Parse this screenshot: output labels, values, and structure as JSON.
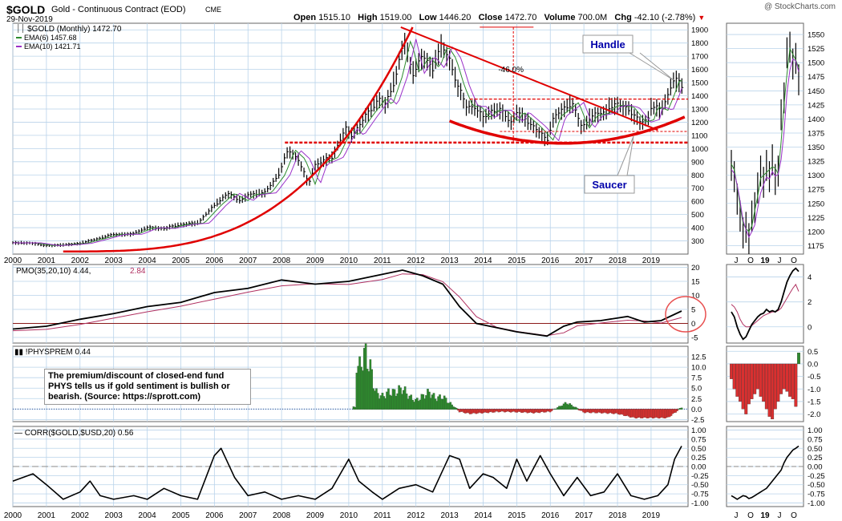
{
  "header": {
    "symbol": "$GOLD",
    "name": "Gold - Continuous Contract (EOD)",
    "exchange": "CME",
    "date": "29-Nov-2019",
    "open_label": "Open",
    "open": "1515.10",
    "high_label": "High",
    "high": "1519.00",
    "low_label": "Low",
    "low": "1446.20",
    "close_label": "Close",
    "close": "1472.70",
    "volume_label": "Volume",
    "volume": "700.0M",
    "chg_label": "Chg",
    "chg": "-42.10 (-2.78%)",
    "watermark": "@ StockCharts.com"
  },
  "colors": {
    "price": "#000000",
    "ema6": "#2e8b2e",
    "ema10": "#9b30c8",
    "annotation": "#e00000",
    "histo_pos": "#2e8b2e",
    "histo_neg": "#d83030",
    "grid": "#b9d3ea",
    "callout": "#0000aa"
  },
  "chart_data": [
    {
      "panel": "price-main",
      "type": "line",
      "legend": [
        {
          "name": "$GOLD (Monthly)",
          "value": "1472.70"
        },
        {
          "name": "EMA(6)",
          "value": "1457.68"
        },
        {
          "name": "EMA(10)",
          "value": "1421.71"
        }
      ],
      "x_ticks": [
        "2000",
        "2001",
        "2002",
        "2003",
        "2004",
        "2005",
        "2006",
        "2007",
        "2008",
        "2009",
        "2010",
        "2011",
        "2012",
        "2013",
        "2014",
        "2015",
        "2016",
        "2017",
        "2018",
        "2019"
      ],
      "y_ticks": [
        300,
        400,
        500,
        600,
        700,
        800,
        900,
        1000,
        1100,
        1200,
        1300,
        1400,
        1500,
        1600,
        1700,
        1800,
        1900
      ],
      "ylim": [
        200,
        1950
      ],
      "xlim": [
        2000.0,
        2020.1
      ],
      "close_points": [
        [
          2000.0,
          285
        ],
        [
          2000.5,
          285
        ],
        [
          2001.0,
          265
        ],
        [
          2001.5,
          270
        ],
        [
          2002.0,
          282
        ],
        [
          2002.5,
          315
        ],
        [
          2003.0,
          350
        ],
        [
          2003.5,
          350
        ],
        [
          2004.0,
          400
        ],
        [
          2004.5,
          395
        ],
        [
          2005.0,
          425
        ],
        [
          2005.5,
          435
        ],
        [
          2006.0,
          570
        ],
        [
          2006.4,
          660
        ],
        [
          2006.8,
          605
        ],
        [
          2007.0,
          650
        ],
        [
          2007.5,
          665
        ],
        [
          2007.9,
          800
        ],
        [
          2008.2,
          990
        ],
        [
          2008.5,
          920
        ],
        [
          2008.8,
          730
        ],
        [
          2009.0,
          880
        ],
        [
          2009.5,
          935
        ],
        [
          2009.9,
          1150
        ],
        [
          2010.1,
          1100
        ],
        [
          2010.5,
          1245
        ],
        [
          2010.9,
          1380
        ],
        [
          2011.1,
          1330
        ],
        [
          2011.4,
          1550
        ],
        [
          2011.65,
          1830
        ],
        [
          2011.9,
          1570
        ],
        [
          2012.2,
          1700
        ],
        [
          2012.5,
          1610
        ],
        [
          2012.75,
          1780
        ],
        [
          2013.0,
          1680
        ],
        [
          2013.25,
          1470
        ],
        [
          2013.5,
          1320
        ],
        [
          2013.75,
          1320
        ],
        [
          2014.0,
          1230
        ],
        [
          2014.25,
          1290
        ],
        [
          2014.5,
          1290
        ],
        [
          2014.85,
          1200
        ],
        [
          2015.0,
          1280
        ],
        [
          2015.5,
          1170
        ],
        [
          2015.9,
          1060
        ],
        [
          2016.1,
          1240
        ],
        [
          2016.5,
          1320
        ],
        [
          2016.65,
          1350
        ],
        [
          2016.95,
          1150
        ],
        [
          2017.2,
          1250
        ],
        [
          2017.6,
          1270
        ],
        [
          2017.75,
          1320
        ],
        [
          2018.0,
          1330
        ],
        [
          2018.3,
          1310
        ],
        [
          2018.65,
          1200
        ],
        [
          2018.9,
          1220
        ],
        [
          2019.0,
          1320
        ],
        [
          2019.3,
          1290
        ],
        [
          2019.5,
          1410
        ],
        [
          2019.65,
          1520
        ],
        [
          2019.8,
          1510
        ],
        [
          2019.91,
          1472
        ]
      ],
      "annotations": {
        "resistance_lines": [
          1375,
          1045
        ],
        "pct_label": "-46.0%",
        "callouts": [
          "Handle",
          "Saucer"
        ]
      }
    },
    {
      "panel": "price-inset",
      "type": "line",
      "x_ticks": [
        "J",
        "O",
        "19",
        "J",
        "O"
      ],
      "y_ticks": [
        1175,
        1200,
        1225,
        1250,
        1275,
        1300,
        1325,
        1350,
        1375,
        1400,
        1425,
        1450,
        1475,
        1500,
        1525,
        1550
      ],
      "ylim": [
        1160,
        1570
      ]
    },
    {
      "panel": "pmo",
      "type": "line",
      "legend": [
        {
          "name": "PMO(35,20,10)",
          "value": "4.44"
        },
        {
          "name": "",
          "value": "2.84"
        }
      ],
      "y_ticks": [
        -5,
        0,
        5,
        10,
        15,
        20
      ],
      "ylim": [
        -7,
        21
      ],
      "points": [
        [
          2000.0,
          -2
        ],
        [
          2001.0,
          -1
        ],
        [
          2002.0,
          1.5
        ],
        [
          2003.0,
          3.5
        ],
        [
          2004.0,
          6
        ],
        [
          2005.0,
          7.5
        ],
        [
          2006.0,
          11
        ],
        [
          2007.0,
          12.5
        ],
        [
          2008.0,
          15.5
        ],
        [
          2009.0,
          14
        ],
        [
          2010.0,
          15
        ],
        [
          2011.0,
          17.5
        ],
        [
          2011.6,
          19
        ],
        [
          2012.2,
          17
        ],
        [
          2012.8,
          14
        ],
        [
          2013.3,
          6
        ],
        [
          2013.8,
          0
        ],
        [
          2014.4,
          -1.5
        ],
        [
          2015.0,
          -3
        ],
        [
          2015.9,
          -4.5
        ],
        [
          2016.4,
          -1
        ],
        [
          2016.8,
          0.5
        ],
        [
          2017.5,
          1
        ],
        [
          2018.3,
          2.5
        ],
        [
          2018.8,
          0.5
        ],
        [
          2019.3,
          1
        ],
        [
          2019.91,
          4.44
        ]
      ]
    },
    {
      "panel": "pmo-inset",
      "type": "line",
      "y_ticks": [
        0,
        2,
        4
      ],
      "ylim": [
        -1.3,
        5
      ]
    },
    {
      "panel": "physprem",
      "type": "bar",
      "legend": [
        {
          "name": "!PHYSPREM",
          "value": "0.44"
        }
      ],
      "note": "The premium/discount of closed-end fund PHYS tells us if gold sentiment is bullish or bearish. (Source: https://sprott.com)",
      "y_ticks": [
        "-2.5",
        "0.0",
        "2.5",
        "5.0",
        "7.5",
        "10.0",
        "12.5"
      ],
      "ylim": [
        -3,
        15
      ],
      "bars": [
        [
          2010.2,
          14
        ],
        [
          2010.3,
          9
        ],
        [
          2010.4,
          12
        ],
        [
          2010.5,
          13
        ],
        [
          2010.6,
          11
        ],
        [
          2010.7,
          8
        ],
        [
          2010.8,
          4
        ],
        [
          2011.0,
          3
        ],
        [
          2011.2,
          4
        ],
        [
          2011.4,
          4
        ],
        [
          2011.6,
          5
        ],
        [
          2011.8,
          3
        ],
        [
          2012.0,
          2
        ],
        [
          2012.2,
          3
        ],
        [
          2012.4,
          4
        ],
        [
          2012.6,
          2.5
        ],
        [
          2012.8,
          3
        ],
        [
          2013.0,
          1.5
        ],
        [
          2013.3,
          -0.5
        ],
        [
          2013.6,
          -1
        ],
        [
          2014.0,
          -0.8
        ],
        [
          2014.5,
          -0.5
        ],
        [
          2015.0,
          -0.6
        ],
        [
          2015.5,
          -0.8
        ],
        [
          2016.0,
          -0.5
        ],
        [
          2016.5,
          1.5
        ],
        [
          2017.0,
          -0.7
        ],
        [
          2017.5,
          -0.8
        ],
        [
          2018.0,
          -1
        ],
        [
          2018.5,
          -2
        ],
        [
          2019.0,
          -2
        ],
        [
          2019.5,
          -2
        ],
        [
          2019.91,
          0.44
        ]
      ]
    },
    {
      "panel": "physprem-inset",
      "type": "bar",
      "y_ticks": [
        "-2.0",
        "-1.5",
        "-1.0",
        "-0.5",
        "0.0",
        "0.5"
      ],
      "ylim": [
        -2.3,
        0.7
      ]
    },
    {
      "panel": "corr",
      "type": "line",
      "legend": [
        {
          "name": "CORR($GOLD,$USD,20)",
          "value": "0.56"
        }
      ],
      "y_ticks": [
        "-1.00",
        "-0.75",
        "-0.50",
        "-0.25",
        "0.00",
        "0.25",
        "0.50",
        "0.75",
        "1.00"
      ],
      "ylim": [
        -1.1,
        1.1
      ],
      "points": [
        [
          2000.0,
          -0.4
        ],
        [
          2000.6,
          -0.2
        ],
        [
          2001.0,
          -0.5
        ],
        [
          2001.5,
          -0.9
        ],
        [
          2002.0,
          -0.7
        ],
        [
          2002.3,
          -0.4
        ],
        [
          2002.6,
          -0.8
        ],
        [
          2003.0,
          -0.9
        ],
        [
          2003.6,
          -0.8
        ],
        [
          2004.0,
          -0.9
        ],
        [
          2004.5,
          -0.6
        ],
        [
          2005.0,
          -0.8
        ],
        [
          2005.5,
          -0.9
        ],
        [
          2006.0,
          0.3
        ],
        [
          2006.2,
          0.5
        ],
        [
          2006.6,
          -0.3
        ],
        [
          2007.0,
          -0.8
        ],
        [
          2007.5,
          -0.7
        ],
        [
          2008.0,
          -0.9
        ],
        [
          2008.5,
          -0.8
        ],
        [
          2009.0,
          -0.9
        ],
        [
          2009.5,
          -0.6
        ],
        [
          2010.0,
          0.2
        ],
        [
          2010.3,
          -0.4
        ],
        [
          2010.7,
          -0.7
        ],
        [
          2011.0,
          -0.9
        ],
        [
          2011.5,
          -0.6
        ],
        [
          2012.0,
          -0.5
        ],
        [
          2012.5,
          -0.7
        ],
        [
          2013.0,
          0.3
        ],
        [
          2013.3,
          0.2
        ],
        [
          2013.6,
          -0.6
        ],
        [
          2014.0,
          -0.2
        ],
        [
          2014.3,
          -0.3
        ],
        [
          2014.7,
          -0.6
        ],
        [
          2015.0,
          0.2
        ],
        [
          2015.3,
          -0.4
        ],
        [
          2015.7,
          0.3
        ],
        [
          2016.0,
          -0.2
        ],
        [
          2016.4,
          -0.8
        ],
        [
          2016.8,
          -0.3
        ],
        [
          2017.2,
          -0.8
        ],
        [
          2017.6,
          -0.7
        ],
        [
          2018.0,
          -0.2
        ],
        [
          2018.4,
          -0.8
        ],
        [
          2018.8,
          -0.9
        ],
        [
          2019.2,
          -0.8
        ],
        [
          2019.5,
          -0.5
        ],
        [
          2019.7,
          0.2
        ],
        [
          2019.91,
          0.56
        ]
      ]
    },
    {
      "panel": "corr-inset",
      "type": "line",
      "y_ticks": [
        "-1.00",
        "-0.75",
        "-0.50",
        "-0.25",
        "0.00",
        "0.25",
        "0.50",
        "0.75",
        "1.00"
      ],
      "ylim": [
        -1.1,
        1.1
      ]
    }
  ]
}
